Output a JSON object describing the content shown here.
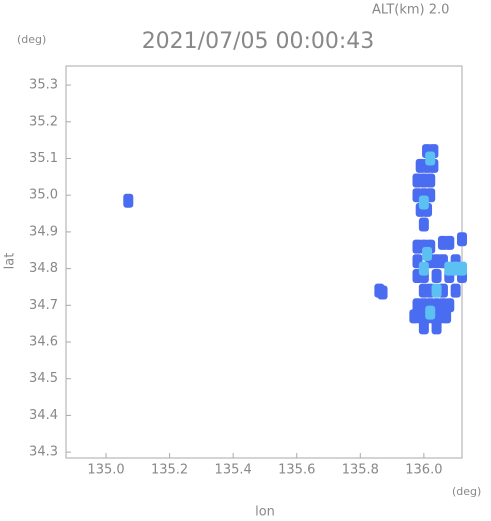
{
  "chart_data": {
    "type": "scatter",
    "title": "2021/07/05 00:00:43",
    "subtitle": "ALT(km) 2.0",
    "x_label": "lon",
    "y_label": "lat",
    "x_unit": "(deg)",
    "y_unit": "(deg)",
    "xlim": [
      134.874,
      136.12
    ],
    "ylim": [
      34.284,
      35.352
    ],
    "xticks": [
      {
        "value": 135,
        "label": "135.0"
      },
      135.2,
      135.4,
      135.6,
      135.8,
      {
        "value": 136,
        "label": "136.0"
      }
    ],
    "yticks": [
      34.3,
      34.4,
      34.5,
      34.6,
      34.7,
      34.8,
      34.9,
      {
        "value": 35,
        "label": "35.0"
      },
      35.1,
      35.2,
      35.3
    ],
    "series": [
      {
        "color": "#4a6cf0",
        "x": [
          135.07,
          135.86,
          135.87,
          136.01,
          136.03,
          135.99,
          136.01,
          136.03,
          135.98,
          136.0,
          136.02,
          135.98,
          136.0,
          136.02,
          135.99,
          136.01,
          136.0,
          135.98,
          136.0,
          136.02,
          136.06,
          136.08,
          136.12,
          135.98,
          136.02,
          136.04,
          136.06,
          136.1,
          135.98,
          136.0,
          136.04,
          136.08,
          136.12,
          136.0,
          136.02,
          136.06,
          136.1,
          135.98,
          136.0,
          136.02,
          136.04,
          136.06,
          136.08,
          135.97,
          135.99,
          136.01,
          136.03,
          136.05,
          136.07,
          136.0,
          136.04
        ],
        "values": [
          34.985,
          34.74,
          34.735,
          35.12,
          35.12,
          35.08,
          35.08,
          35.08,
          35.04,
          35.04,
          35.04,
          35.0,
          35.0,
          35.0,
          34.96,
          34.96,
          34.92,
          34.86,
          34.86,
          34.86,
          34.87,
          34.87,
          34.88,
          34.82,
          34.82,
          34.82,
          34.82,
          34.82,
          34.78,
          34.78,
          34.78,
          34.78,
          34.78,
          34.74,
          34.74,
          34.74,
          34.74,
          34.7,
          34.7,
          34.7,
          34.7,
          34.7,
          34.7,
          34.67,
          34.67,
          34.67,
          34.67,
          34.67,
          34.67,
          34.64,
          34.64
        ]
      },
      {
        "color": "#5cc0f2",
        "x": [
          136.02,
          136.0,
          136.01,
          136.08,
          136.1,
          136.12,
          136.0,
          136.04,
          136.02
        ],
        "values": [
          35.1,
          34.98,
          34.84,
          34.8,
          34.8,
          34.8,
          34.8,
          34.74,
          34.68
        ]
      }
    ]
  }
}
